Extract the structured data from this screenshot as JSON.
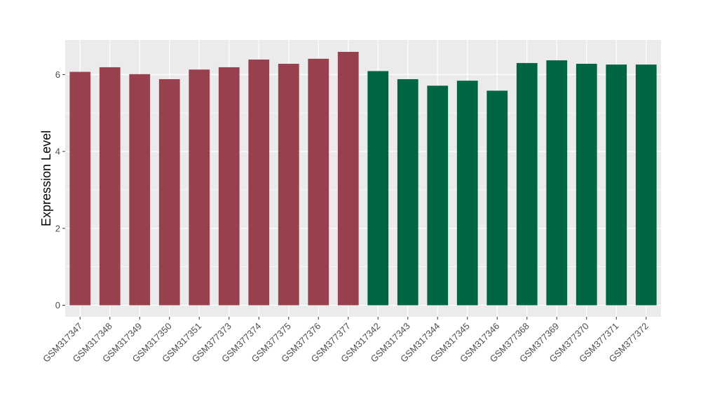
{
  "chart_data": {
    "type": "bar",
    "title": "",
    "xlabel": "",
    "ylabel": "Expression Level",
    "ylim": [
      -0.3,
      6.9
    ],
    "yticks": [
      0,
      2,
      4,
      6
    ],
    "grid": true,
    "legend": "none",
    "categories": [
      "GSM317347",
      "GSM317348",
      "GSM317349",
      "GSM317350",
      "GSM317351",
      "GSM377373",
      "GSM377374",
      "GSM377375",
      "GSM377376",
      "GSM377377",
      "GSM317342",
      "GSM317343",
      "GSM317344",
      "GSM317345",
      "GSM317346",
      "GSM377368",
      "GSM377369",
      "GSM377370",
      "GSM377371",
      "GSM377372"
    ],
    "values": [
      6.07,
      6.19,
      6.01,
      5.88,
      6.13,
      6.19,
      6.39,
      6.28,
      6.41,
      6.59,
      6.09,
      5.88,
      5.71,
      5.84,
      5.58,
      6.3,
      6.37,
      6.28,
      6.26,
      6.26
    ],
    "groups": [
      0,
      0,
      0,
      0,
      0,
      0,
      0,
      0,
      0,
      0,
      1,
      1,
      1,
      1,
      1,
      1,
      1,
      1,
      1,
      1
    ],
    "colors": [
      "#99404e",
      "#006543"
    ],
    "panel_background": "#ebebeb",
    "grid_color": "#ffffff"
  }
}
